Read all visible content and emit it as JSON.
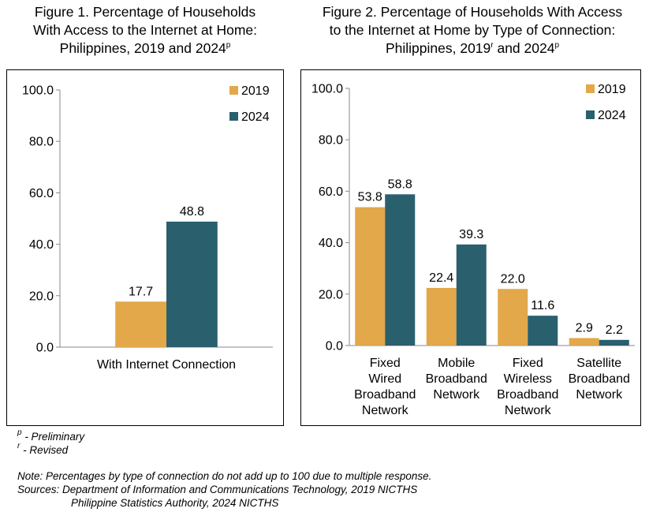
{
  "figure1": {
    "title_lines": [
      "Figure 1. Percentage of Households",
      "With Access to the Internet at Home:",
      "Philippines, 2019 and 2024"
    ],
    "title_sup": "p"
  },
  "figure2": {
    "title_lines": [
      "Figure 2. Percentage of Households With Access",
      "to the Internet at Home by Type of Connection:"
    ],
    "title_line3_a": "Philippines, 2019",
    "title_sup_a": "r",
    "title_line3_b": " and 2024",
    "title_sup_b": "p"
  },
  "colors": {
    "s2019": "#E2A84A",
    "s2024": "#2A5F6E",
    "axis": "#888888",
    "border": "#000000"
  },
  "chart_data": [
    {
      "type": "bar",
      "categories": [
        [
          "With Internet Connection"
        ]
      ],
      "series": [
        {
          "name": "2019",
          "values": [
            17.7
          ],
          "labels": [
            "17.7"
          ]
        },
        {
          "name": "2024",
          "values": [
            48.8
          ],
          "labels": [
            "48.8"
          ]
        }
      ],
      "ylim": [
        0,
        100
      ],
      "yticks": [
        "0.0",
        "20.0",
        "40.0",
        "60.0",
        "80.0",
        "100.0"
      ],
      "legend": "top-right"
    },
    {
      "type": "bar",
      "categories": [
        [
          "Fixed",
          "Wired",
          "Broadband",
          "Network"
        ],
        [
          "Mobile",
          "Broadband",
          "Network"
        ],
        [
          "Fixed",
          "Wireless",
          "Broadband",
          "Network"
        ],
        [
          "Satellite",
          "Broadband",
          "Network"
        ]
      ],
      "series": [
        {
          "name": "2019",
          "values": [
            53.8,
            22.4,
            22.0,
            2.9
          ],
          "labels": [
            "53.8",
            "22.4",
            "22.0",
            "2.9"
          ]
        },
        {
          "name": "2024",
          "values": [
            58.8,
            39.3,
            11.6,
            2.2
          ],
          "labels": [
            "58.8",
            "39.3",
            "11.6",
            "2.2"
          ]
        }
      ],
      "ylim": [
        0,
        100
      ],
      "yticks": [
        "0.0",
        "20.0",
        "40.0",
        "60.0",
        "80.0",
        "100.0"
      ],
      "legend": "top-right"
    }
  ],
  "notes": {
    "preliminary_sup": "p",
    "preliminary": " - Preliminary",
    "revised_sup": "r",
    "revised": " - Revised",
    "note": "Note: Percentages by type of connection do not add up to 100 due to multiple response.",
    "sources1": "Sources: Department of Information and Communications Technology, 2019 NICTHS",
    "sources2": "Philippine Statistics Authority, 2024 NICTHS"
  }
}
